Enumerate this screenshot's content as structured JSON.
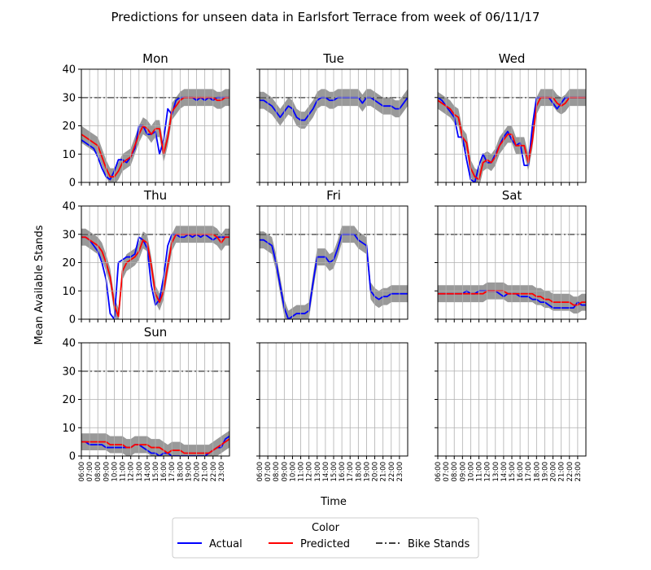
{
  "figure": {
    "title": "Predictions for unseen data in Earlsfort Terrace from week of 06/11/17",
    "xlabel": "Time",
    "ylabel": "Mean Available Stands"
  },
  "legend": {
    "title": "Color",
    "entries": [
      {
        "label": "Actual",
        "color": "#0000ff",
        "style": "solid"
      },
      {
        "label": "Predicted",
        "color": "#ff0000",
        "style": "solid"
      },
      {
        "label": "Bike Stands",
        "color": "#000000",
        "style": "dashdot"
      }
    ],
    "position": "bottom-center"
  },
  "colors": {
    "actual": "#0000ff",
    "predicted": "#ff0000",
    "band": "#999999",
    "bike_stands": "#000000"
  },
  "chart_data": {
    "type": "line",
    "grid": true,
    "ylim": [
      0,
      40
    ],
    "yticks": [
      0,
      10,
      20,
      30,
      40
    ],
    "xlim": [
      6,
      24
    ],
    "x_tick_labels": [
      "06:00",
      "07:00",
      "08:00",
      "09:00",
      "10:00",
      "11:00",
      "12:00",
      "13:00",
      "14:00",
      "15:00",
      "16:00",
      "17:00",
      "18:00",
      "19:00",
      "20:00",
      "21:00",
      "22:00",
      "23:00"
    ],
    "x_hours": [
      6,
      6.5,
      7,
      7.5,
      8,
      8.5,
      9,
      9.5,
      10,
      10.5,
      11,
      11.5,
      12,
      12.5,
      13,
      13.5,
      14,
      14.5,
      15,
      15.5,
      16,
      16.5,
      17,
      17.5,
      18,
      18.5,
      19,
      19.5,
      20,
      20.5,
      21,
      21.5,
      22,
      22.5,
      23,
      23.5,
      24
    ],
    "bike_stands": 30,
    "band_halfwidth": 3,
    "panels": [
      {
        "title": "Mon",
        "actual": [
          15,
          14,
          13,
          12,
          9,
          5,
          2,
          1,
          4,
          8,
          8,
          7,
          9,
          12,
          20,
          20,
          17,
          17,
          18,
          10,
          15,
          26,
          24,
          29,
          30,
          30,
          30,
          30,
          29,
          30,
          29,
          30,
          29,
          30,
          30,
          30,
          30
        ],
        "predicted": [
          17,
          16,
          15,
          14,
          13,
          9,
          5,
          2,
          2,
          4,
          7,
          8,
          9,
          13,
          17,
          20,
          19,
          17,
          19,
          19,
          10,
          16,
          25,
          27,
          29,
          30,
          30,
          30,
          30,
          30,
          30,
          30,
          30,
          29,
          29,
          30,
          30
        ]
      },
      {
        "title": "Tue",
        "actual": [
          29,
          29,
          28,
          27,
          25,
          23,
          25,
          27,
          26,
          23,
          22,
          22,
          24,
          26,
          29,
          30,
          30,
          29,
          29,
          30,
          30,
          30,
          30,
          30,
          30,
          28,
          30,
          30,
          29,
          28,
          27,
          27,
          27,
          26,
          26,
          28,
          30
        ]
      },
      {
        "title": "Wed",
        "actual": [
          30,
          29,
          27,
          25,
          23,
          16,
          16,
          8,
          1,
          0,
          6,
          10,
          7,
          7,
          10,
          13,
          16,
          18,
          15,
          13,
          14,
          6,
          6,
          20,
          30,
          30,
          30,
          30,
          28,
          26,
          28,
          30,
          30,
          30,
          30,
          30,
          30
        ],
        "predicted": [
          29,
          28,
          27,
          26,
          24,
          23,
          16,
          14,
          5,
          2,
          1,
          7,
          8,
          7,
          9,
          13,
          15,
          17,
          17,
          13,
          13,
          13,
          7,
          15,
          27,
          30,
          30,
          30,
          30,
          28,
          27,
          28,
          30,
          30,
          30,
          30,
          30
        ]
      },
      {
        "title": "Thu",
        "actual": [
          29,
          29,
          28,
          26,
          24,
          20,
          14,
          2,
          0,
          20,
          21,
          22,
          22,
          23,
          29,
          28,
          25,
          12,
          5,
          7,
          15,
          26,
          30,
          30,
          29,
          29,
          30,
          29,
          30,
          29,
          30,
          29,
          28,
          29,
          29,
          29,
          29
        ],
        "predicted": [
          29,
          29,
          28,
          27,
          26,
          24,
          20,
          15,
          5,
          1,
          17,
          20,
          21,
          22,
          24,
          28,
          27,
          19,
          9,
          6,
          10,
          19,
          27,
          30,
          30,
          30,
          30,
          30,
          30,
          30,
          30,
          30,
          30,
          29,
          27,
          29,
          29
        ]
      },
      {
        "title": "Fri",
        "actual": [
          28,
          28,
          27,
          26,
          20,
          12,
          4,
          0,
          1,
          2,
          2,
          2,
          3,
          13,
          22,
          22,
          22,
          20,
          21,
          25,
          30,
          30,
          30,
          30,
          28,
          27,
          26,
          10,
          8,
          7,
          8,
          8,
          9,
          9,
          9,
          9,
          9
        ]
      },
      {
        "title": "Sat",
        "actual": [
          9,
          9,
          9,
          9,
          9,
          9,
          9,
          10,
          9,
          9,
          10,
          10,
          10,
          10,
          10,
          9,
          8,
          9,
          9,
          9,
          8,
          8,
          8,
          7,
          7,
          6,
          6,
          5,
          4,
          4,
          4,
          4,
          4,
          4,
          6,
          5,
          5
        ],
        "predicted": [
          9,
          9,
          9,
          9,
          9,
          9,
          9,
          9,
          9,
          9,
          9,
          9,
          10,
          10,
          10,
          10,
          10,
          9,
          9,
          9,
          9,
          9,
          9,
          9,
          8,
          8,
          7,
          7,
          6,
          6,
          6,
          6,
          6,
          5,
          5,
          6,
          6
        ]
      },
      {
        "title": "Sun",
        "actual": [
          5,
          5,
          4,
          4,
          4,
          4,
          3,
          3,
          3,
          3,
          3,
          3,
          3,
          4,
          4,
          3,
          2,
          1,
          1,
          0,
          1,
          1,
          0,
          0,
          0,
          0,
          0,
          0,
          0,
          0,
          0,
          1,
          2,
          3,
          3,
          6,
          7
        ],
        "predicted": [
          5,
          5,
          5,
          5,
          5,
          5,
          5,
          4,
          4,
          4,
          4,
          3,
          3,
          4,
          4,
          4,
          4,
          3,
          3,
          3,
          2,
          1,
          2,
          2,
          2,
          1,
          1,
          1,
          1,
          1,
          1,
          1,
          2,
          3,
          4,
          5,
          6
        ]
      },
      {
        "title": ""
      },
      {
        "title": ""
      }
    ]
  }
}
